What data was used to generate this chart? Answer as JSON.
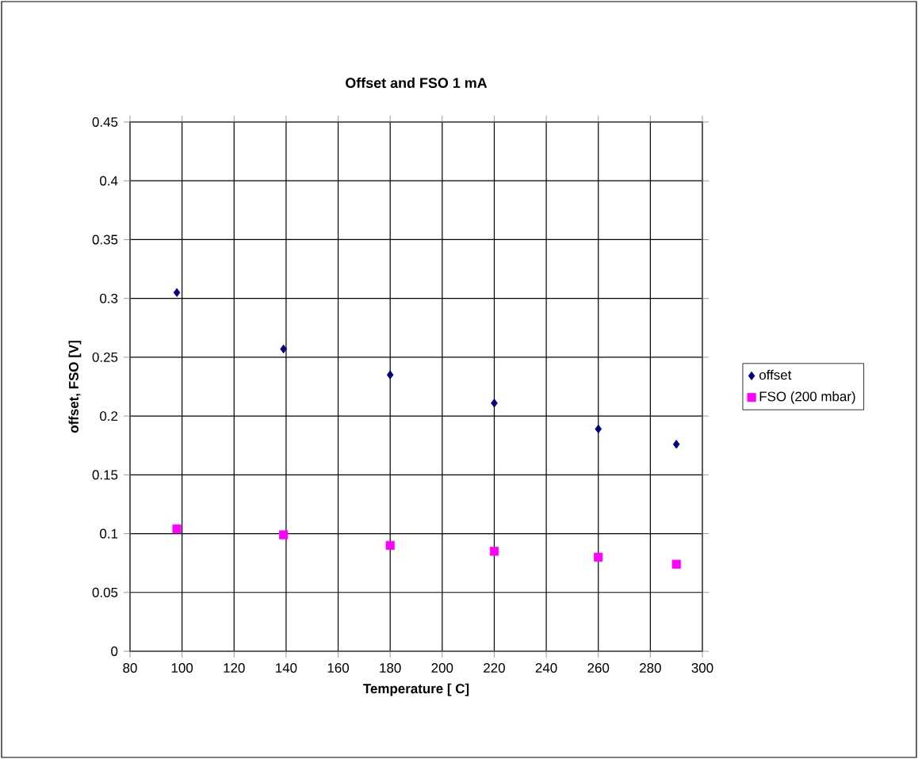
{
  "chart_data": {
    "type": "scatter",
    "title": "Offset and FSO 1 mA",
    "xlabel": "Temperature [ C]",
    "ylabel": "offset, FSO [V]",
    "x": [
      98,
      139,
      180,
      220,
      260,
      290
    ],
    "series": [
      {
        "name": "offset",
        "color": "#000080",
        "marker": "diamond",
        "values": [
          0.305,
          0.257,
          0.235,
          0.211,
          0.189,
          0.176
        ]
      },
      {
        "name": "FSO (200 mbar)",
        "color": "#ff00ff",
        "marker": "square",
        "values": [
          0.104,
          0.099,
          0.09,
          0.085,
          0.08,
          0.074
        ]
      }
    ],
    "xlim": [
      80,
      300
    ],
    "xticks": [
      80,
      100,
      120,
      140,
      160,
      180,
      200,
      220,
      240,
      260,
      280,
      300
    ],
    "ylim": [
      0,
      0.45
    ],
    "yticks": [
      0,
      0.05,
      0.1,
      0.15,
      0.2,
      0.25,
      0.3,
      0.35,
      0.4,
      0.45
    ],
    "grid": true,
    "legend": "right"
  }
}
